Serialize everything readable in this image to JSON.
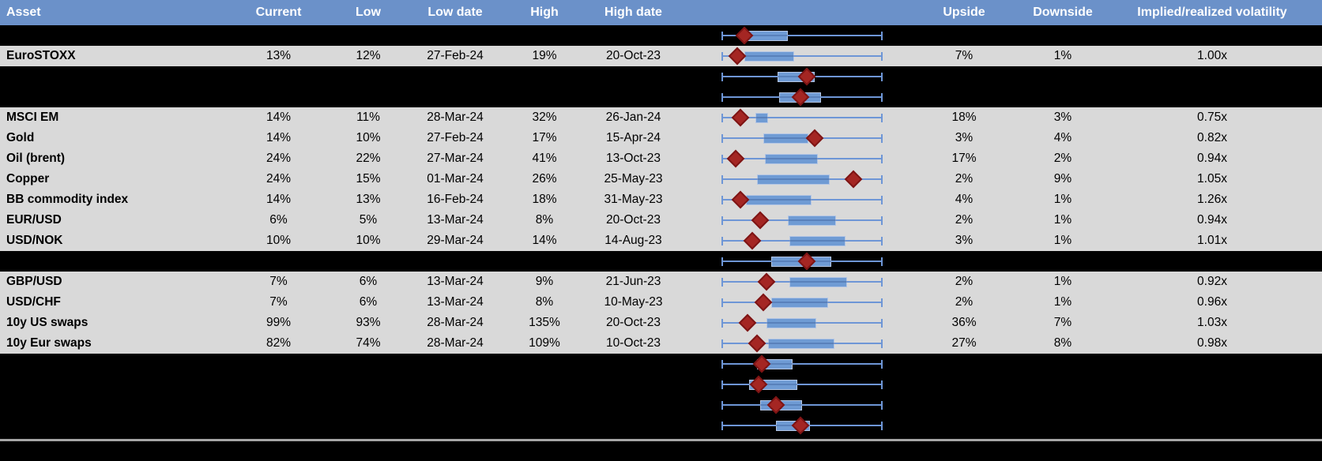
{
  "colors": {
    "header_bg": "#6B91C9",
    "header_text": "#FFFFFF",
    "row_bg": "#D9D9D9",
    "spacer_bg": "#000000",
    "box_fill": "#6F9BD4",
    "box_border": "#B4C6E4",
    "whisker": "#6E96D6",
    "diamond": "#A42623",
    "bottom_rule": "#A6A6A6"
  },
  "header": {
    "columns": {
      "asset": "Asset",
      "current": "Current",
      "low": "Low",
      "low_date": "Low date",
      "high": "High",
      "high_date": "High date",
      "chart": "",
      "upside": "Upside",
      "downside": "Downside",
      "implied": "Implied/realized volatility"
    }
  },
  "chart_data": {
    "type": "boxplot-rows",
    "note": "Each row shows a horizontal min–max whisker (normalized full width), an interquartile box (percent of span) and a red diamond marker for current level (percent of span).",
    "legend_position": "none",
    "grid": false
  },
  "rows": [
    {
      "type": "spacer",
      "boxplot": {
        "box_lo": 15,
        "box_hi": 41,
        "marker": 14
      }
    },
    {
      "type": "data",
      "asset": "EuroSTOXX",
      "current": "13%",
      "low": "12%",
      "low_date": "27-Feb-24",
      "high": "19%",
      "high_date": "20-Oct-23",
      "upside": "7%",
      "downside": "1%",
      "implied": "1.00x",
      "boxplot": {
        "box_lo": 14,
        "box_hi": 45,
        "marker": 10
      }
    },
    {
      "type": "spacer",
      "boxplot": {
        "box_lo": 35,
        "box_hi": 58,
        "marker": 53
      }
    },
    {
      "type": "spacer",
      "boxplot": {
        "box_lo": 36,
        "box_hi": 62,
        "marker": 49
      }
    },
    {
      "type": "data",
      "asset": "MSCI EM",
      "current": "14%",
      "low": "11%",
      "low_date": "28-Mar-24",
      "high": "32%",
      "high_date": "26-Jan-24",
      "upside": "18%",
      "downside": "3%",
      "implied": "0.75x",
      "boxplot": {
        "box_lo": 21,
        "box_hi": 29,
        "marker": 12
      }
    },
    {
      "type": "data",
      "asset": "Gold",
      "current": "14%",
      "low": "10%",
      "low_date": "27-Feb-24",
      "high": "17%",
      "high_date": "15-Apr-24",
      "upside": "3%",
      "downside": "4%",
      "implied": "0.82x",
      "boxplot": {
        "box_lo": 26,
        "box_hi": 54,
        "marker": 58
      }
    },
    {
      "type": "data",
      "asset": "Oil (brent)",
      "current": "24%",
      "low": "22%",
      "low_date": "27-Mar-24",
      "high": "41%",
      "high_date": "13-Oct-23",
      "upside": "17%",
      "downside": "2%",
      "implied": "0.94x",
      "boxplot": {
        "box_lo": 27,
        "box_hi": 60,
        "marker": 9
      }
    },
    {
      "type": "data",
      "asset": "Copper",
      "current": "24%",
      "low": "15%",
      "low_date": "01-Mar-24",
      "high": "26%",
      "high_date": "25-May-23",
      "upside": "2%",
      "downside": "9%",
      "implied": "1.05x",
      "boxplot": {
        "box_lo": 22,
        "box_hi": 67,
        "marker": 82
      }
    },
    {
      "type": "data",
      "asset": "BB commodity index",
      "current": "14%",
      "low": "13%",
      "low_date": "16-Feb-24",
      "high": "18%",
      "high_date": "31-May-23",
      "upside": "4%",
      "downside": "1%",
      "implied": "1.26x",
      "boxplot": {
        "box_lo": 15,
        "box_hi": 56,
        "marker": 12
      }
    },
    {
      "type": "data",
      "asset": "EUR/USD",
      "current": "6%",
      "low": "5%",
      "low_date": "13-Mar-24",
      "high": "8%",
      "high_date": "20-Oct-23",
      "upside": "2%",
      "downside": "1%",
      "implied": "0.94x",
      "boxplot": {
        "box_lo": 41,
        "box_hi": 71,
        "marker": 24
      }
    },
    {
      "type": "data",
      "asset": "USD/NOK",
      "current": "10%",
      "low": "10%",
      "low_date": "29-Mar-24",
      "high": "14%",
      "high_date": "14-Aug-23",
      "upside": "3%",
      "downside": "1%",
      "implied": "1.01x",
      "boxplot": {
        "box_lo": 42,
        "box_hi": 77,
        "marker": 19
      }
    },
    {
      "type": "spacer",
      "boxplot": {
        "box_lo": 31,
        "box_hi": 68,
        "marker": 53
      }
    },
    {
      "type": "data",
      "asset": "GBP/USD",
      "current": "7%",
      "low": "6%",
      "low_date": "13-Mar-24",
      "high": "9%",
      "high_date": "21-Jun-23",
      "upside": "2%",
      "downside": "1%",
      "implied": "0.92x",
      "boxplot": {
        "box_lo": 42,
        "box_hi": 78,
        "marker": 28
      }
    },
    {
      "type": "data",
      "asset": "USD/CHF",
      "current": "7%",
      "low": "6%",
      "low_date": "13-Mar-24",
      "high": "8%",
      "high_date": "10-May-23",
      "upside": "2%",
      "downside": "1%",
      "implied": "0.96x",
      "boxplot": {
        "box_lo": 31,
        "box_hi": 66,
        "marker": 26
      }
    },
    {
      "type": "data",
      "asset": "10y US swaps",
      "current": "99%",
      "low": "93%",
      "low_date": "28-Mar-24",
      "high": "135%",
      "high_date": "20-Oct-23",
      "upside": "36%",
      "downside": "7%",
      "implied": "1.03x",
      "boxplot": {
        "box_lo": 28,
        "box_hi": 59,
        "marker": 16
      }
    },
    {
      "type": "data",
      "asset": "10y Eur swaps",
      "current": "82%",
      "low": "74%",
      "low_date": "28-Mar-24",
      "high": "109%",
      "high_date": "10-Oct-23",
      "upside": "27%",
      "downside": "8%",
      "implied": "0.98x",
      "boxplot": {
        "box_lo": 29,
        "box_hi": 70,
        "marker": 22
      }
    },
    {
      "type": "spacer",
      "boxplot": {
        "box_lo": 22,
        "box_hi": 44,
        "marker": 25
      }
    },
    {
      "type": "spacer",
      "boxplot": {
        "box_lo": 17,
        "box_hi": 47,
        "marker": 23
      }
    },
    {
      "type": "spacer",
      "boxplot": {
        "box_lo": 24,
        "box_hi": 50,
        "marker": 34
      }
    },
    {
      "type": "spacer",
      "boxplot": {
        "box_lo": 34,
        "box_hi": 55,
        "marker": 49
      }
    }
  ]
}
